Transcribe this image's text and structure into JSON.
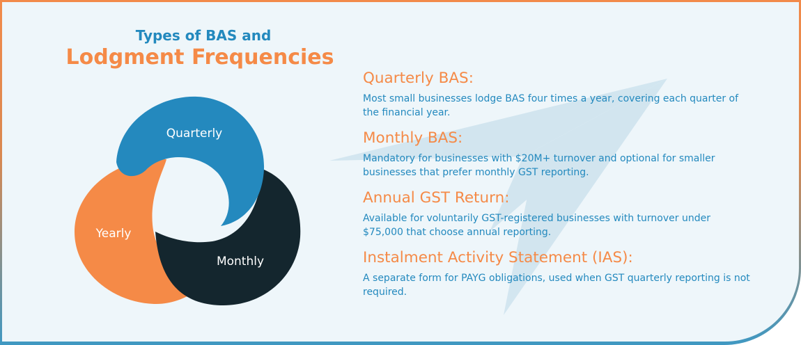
{
  "heading": {
    "line1": "Types of BAS and",
    "line2": "Lodgment Frequencies"
  },
  "diagram": {
    "segments": [
      {
        "label": "Quarterly",
        "color": "#2489be"
      },
      {
        "label": "Yearly",
        "color": "#f58a47"
      },
      {
        "label": "Monthly",
        "color": "#14262e"
      }
    ]
  },
  "items": [
    {
      "title": "Quarterly BAS:",
      "description": "Most small businesses lodge BAS four times a year, covering each quarter of the financial year."
    },
    {
      "title": "Monthly BAS:",
      "description": "Mandatory for businesses with $20M+ turnover and optional for smaller businesses that prefer monthly GST reporting."
    },
    {
      "title": "Annual GST Return:",
      "description": "Available for voluntarily GST-registered businesses with turnover under $75,000 that choose annual reporting."
    },
    {
      "title": "Instalment Activity Statement (IAS):",
      "description": "A separate form for PAYG obligations, used when GST quarterly reporting is not required."
    }
  ],
  "colors": {
    "accent_orange": "#f58a47",
    "accent_blue": "#2389be",
    "dark": "#14262e",
    "background": "#eef6fa"
  },
  "decoration": {
    "background_icon": "paper-plane-icon"
  }
}
